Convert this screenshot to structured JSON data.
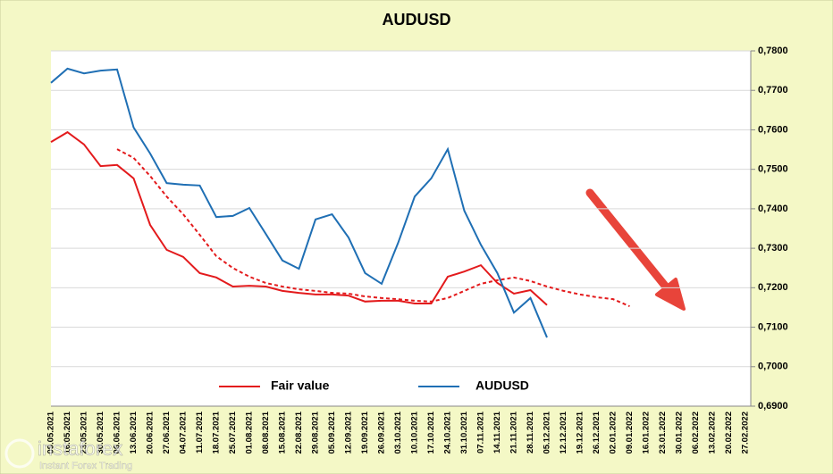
{
  "chart_data": {
    "type": "line",
    "title": "AUDUSD",
    "categories": [
      "09.05.2021",
      "16.05.2021",
      "23.05.2021",
      "30.05.2021",
      "06.06.2021",
      "13.06.2021",
      "20.06.2021",
      "27.06.2021",
      "04.07.2021",
      "11.07.2021",
      "18.07.2021",
      "25.07.2021",
      "01.08.2021",
      "08.08.2021",
      "15.08.2021",
      "22.08.2021",
      "29.08.2021",
      "05.09.2021",
      "12.09.2021",
      "19.09.2021",
      "26.09.2021",
      "03.10.2021",
      "10.10.2021",
      "17.10.2021",
      "24.10.2021",
      "31.10.2021",
      "07.11.2021",
      "14.11.2021",
      "21.11.2021",
      "28.11.2021",
      "05.12.2021",
      "12.12.2021",
      "19.12.2021",
      "26.12.2021",
      "02.01.2022",
      "09.01.2022",
      "16.01.2022",
      "23.01.2022",
      "30.01.2022",
      "06.02.2022",
      "13.02.2022",
      "20.02.2022",
      "27.02.2022"
    ],
    "series": [
      {
        "name": "Fair value",
        "color": "#e31a1c",
        "dash": false,
        "values": [
          0.7569,
          0.7594,
          0.7563,
          0.7508,
          0.7511,
          0.7477,
          0.7359,
          0.7296,
          0.7278,
          0.7237,
          0.7226,
          0.7203,
          0.7205,
          0.7203,
          0.7192,
          0.7187,
          0.7183,
          0.7183,
          0.718,
          0.7165,
          0.7167,
          0.7167,
          0.716,
          0.716,
          0.7228,
          0.7241,
          0.7257,
          0.7212,
          0.7185,
          0.7194,
          0.7156,
          null,
          null,
          null,
          null,
          null,
          null,
          null,
          null,
          null,
          null,
          null,
          null
        ]
      },
      {
        "name": "AUDUSD",
        "color": "#1f6fb4",
        "dash": false,
        "values": [
          0.7719,
          0.7755,
          0.7743,
          0.775,
          0.7753,
          0.7606,
          0.754,
          0.7465,
          0.7461,
          0.7459,
          0.7379,
          0.7382,
          0.7402,
          0.7336,
          0.7269,
          0.7248,
          0.7373,
          0.7386,
          0.7327,
          0.7237,
          0.721,
          0.7314,
          0.7431,
          0.7477,
          0.7551,
          0.7395,
          0.7309,
          0.7237,
          0.7137,
          0.7174,
          0.7074,
          null,
          null,
          null,
          null,
          null,
          null,
          null,
          null,
          null,
          null,
          null,
          null
        ]
      },
      {
        "color": "#e31a1c",
        "dash": true,
        "values": [
          null,
          null,
          null,
          null,
          0.7551,
          0.7529,
          0.7483,
          0.7431,
          0.7386,
          0.7334,
          0.728,
          0.725,
          0.7228,
          0.7212,
          0.7203,
          0.7196,
          0.7192,
          0.7187,
          0.7185,
          0.7178,
          0.7174,
          0.7171,
          0.7167,
          0.7165,
          0.7174,
          0.7192,
          0.721,
          0.7219,
          0.7226,
          0.7217,
          0.7203,
          0.7192,
          0.7183,
          0.7176,
          0.7171,
          0.7153,
          null,
          null,
          null,
          null,
          null,
          null,
          null
        ]
      }
    ],
    "ylim": [
      0.69,
      0.78
    ],
    "yticks": [
      {
        "value": 0.69,
        "label": "0,6900"
      },
      {
        "value": 0.7,
        "label": "0,7000"
      },
      {
        "value": 0.71,
        "label": "0,7100"
      },
      {
        "value": 0.72,
        "label": "0,7200"
      },
      {
        "value": 0.73,
        "label": "0,7300"
      },
      {
        "value": 0.74,
        "label": "0,7400"
      },
      {
        "value": 0.75,
        "label": "0,7500"
      },
      {
        "value": 0.76,
        "label": "0,7600"
      },
      {
        "value": 0.77,
        "label": "0,7700"
      },
      {
        "value": 0.78,
        "label": "0,7800"
      }
    ],
    "grid": true,
    "y_axis_side": "right",
    "watermark": {
      "brand": "instaforex",
      "tagline": "Instant Forex Trading"
    }
  }
}
